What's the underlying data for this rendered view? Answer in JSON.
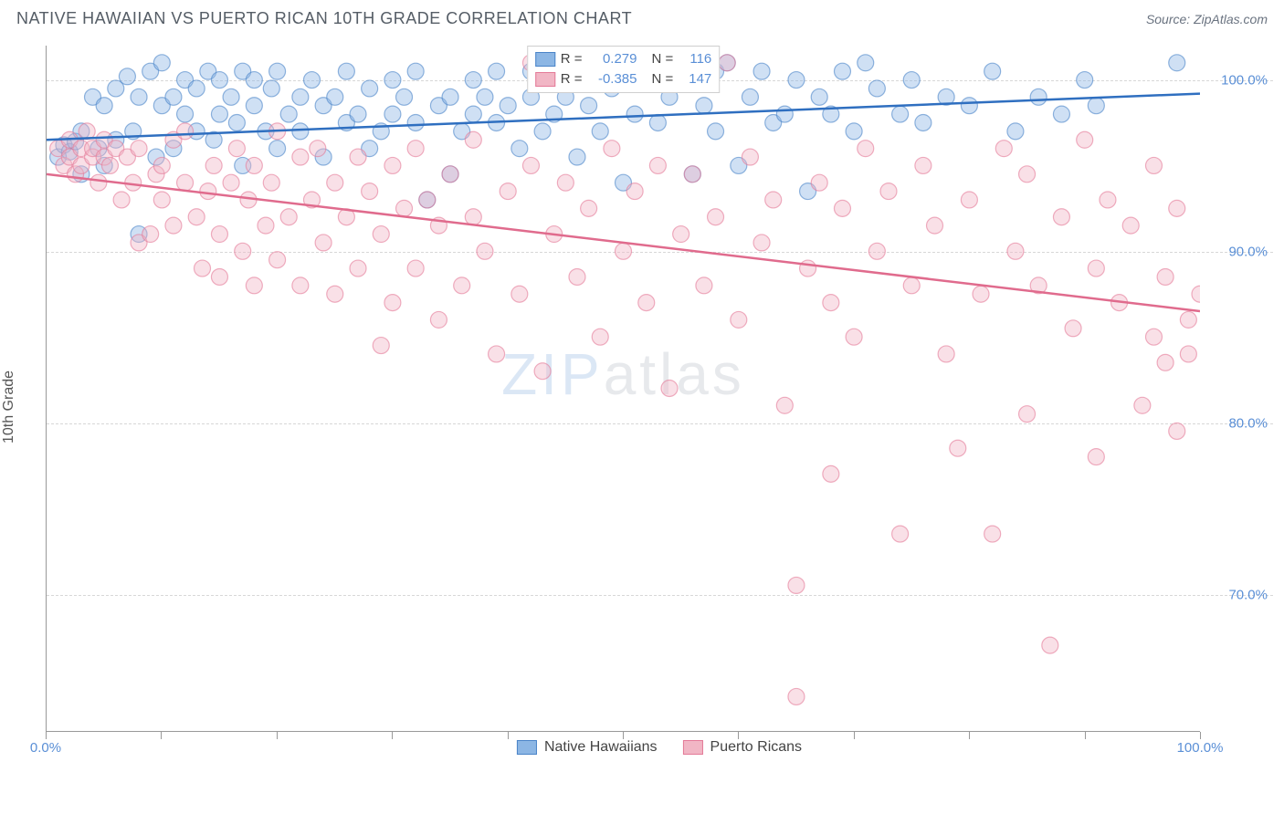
{
  "header": {
    "title": "NATIVE HAWAIIAN VS PUERTO RICAN 10TH GRADE CORRELATION CHART",
    "source": "Source: ZipAtlas.com"
  },
  "chart": {
    "type": "scatter",
    "y_axis_title": "10th Grade",
    "watermark_zip": "ZIP",
    "watermark_atlas": "atlas",
    "xlim": [
      0,
      100
    ],
    "ylim": [
      62,
      102
    ],
    "x_ticks": [
      0,
      10,
      20,
      30,
      40,
      50,
      60,
      70,
      80,
      90,
      100
    ],
    "x_tick_labels": {
      "0": "0.0%",
      "100": "100.0%"
    },
    "y_gridlines": [
      70,
      80,
      90,
      100
    ],
    "y_tick_labels": {
      "70": "70.0%",
      "80": "80.0%",
      "90": "90.0%",
      "100": "100.0%"
    },
    "marker_radius": 9,
    "marker_opacity": 0.42,
    "line_width": 2.5,
    "series": [
      {
        "key": "native_hawaiians",
        "label": "Native Hawaiians",
        "fill": "#8cb6e4",
        "stroke": "#4a84c8",
        "line_color": "#2f6fc0",
        "R": "0.279",
        "N": "116",
        "trend": {
          "x1": 0,
          "y1": 96.5,
          "x2": 100,
          "y2": 99.2
        },
        "points": [
          [
            1,
            95.5
          ],
          [
            1.5,
            96.2
          ],
          [
            2,
            95.8
          ],
          [
            2.5,
            96.4
          ],
          [
            3,
            97.0
          ],
          [
            3,
            94.5
          ],
          [
            4,
            99.0
          ],
          [
            4.5,
            96.0
          ],
          [
            5,
            98.5
          ],
          [
            5,
            95.0
          ],
          [
            6,
            99.5
          ],
          [
            6,
            96.5
          ],
          [
            7,
            100.2
          ],
          [
            7.5,
            97.0
          ],
          [
            8,
            91.0
          ],
          [
            8,
            99.0
          ],
          [
            9,
            100.5
          ],
          [
            9.5,
            95.5
          ],
          [
            10,
            98.5
          ],
          [
            10,
            101.0
          ],
          [
            11,
            96.0
          ],
          [
            11,
            99.0
          ],
          [
            12,
            98.0
          ],
          [
            12,
            100.0
          ],
          [
            13,
            97.0
          ],
          [
            13,
            99.5
          ],
          [
            14,
            100.5
          ],
          [
            14.5,
            96.5
          ],
          [
            15,
            98.0
          ],
          [
            15,
            100.0
          ],
          [
            16,
            99.0
          ],
          [
            16.5,
            97.5
          ],
          [
            17,
            100.5
          ],
          [
            17,
            95.0
          ],
          [
            18,
            98.5
          ],
          [
            18,
            100.0
          ],
          [
            19,
            97.0
          ],
          [
            19.5,
            99.5
          ],
          [
            20,
            100.5
          ],
          [
            20,
            96.0
          ],
          [
            21,
            98.0
          ],
          [
            22,
            99.0
          ],
          [
            22,
            97.0
          ],
          [
            23,
            100.0
          ],
          [
            24,
            98.5
          ],
          [
            24,
            95.5
          ],
          [
            25,
            99.0
          ],
          [
            26,
            97.5
          ],
          [
            26,
            100.5
          ],
          [
            27,
            98.0
          ],
          [
            28,
            99.5
          ],
          [
            28,
            96.0
          ],
          [
            29,
            97.0
          ],
          [
            30,
            100.0
          ],
          [
            30,
            98.0
          ],
          [
            31,
            99.0
          ],
          [
            32,
            100.5
          ],
          [
            32,
            97.5
          ],
          [
            33,
            93.0
          ],
          [
            34,
            98.5
          ],
          [
            35,
            94.5
          ],
          [
            35,
            99.0
          ],
          [
            36,
            97.0
          ],
          [
            37,
            98.0
          ],
          [
            37,
            100.0
          ],
          [
            38,
            99.0
          ],
          [
            39,
            97.5
          ],
          [
            39,
            100.5
          ],
          [
            40,
            98.5
          ],
          [
            41,
            96.0
          ],
          [
            42,
            99.0
          ],
          [
            42,
            100.5
          ],
          [
            43,
            97.0
          ],
          [
            44,
            98.0
          ],
          [
            44,
            100.0
          ],
          [
            45,
            99.0
          ],
          [
            46,
            95.5
          ],
          [
            47,
            98.5
          ],
          [
            48,
            100.0
          ],
          [
            48,
            97.0
          ],
          [
            49,
            99.5
          ],
          [
            50,
            94.0
          ],
          [
            51,
            98.0
          ],
          [
            52,
            100.5
          ],
          [
            53,
            97.5
          ],
          [
            54,
            99.0
          ],
          [
            55,
            100.0
          ],
          [
            56,
            94.5
          ],
          [
            57,
            98.5
          ],
          [
            58,
            100.5
          ],
          [
            58,
            97.0
          ],
          [
            59,
            101.0
          ],
          [
            60,
            95.0
          ],
          [
            61,
            99.0
          ],
          [
            62,
            100.5
          ],
          [
            63,
            97.5
          ],
          [
            64,
            98.0
          ],
          [
            65,
            100.0
          ],
          [
            66,
            93.5
          ],
          [
            67,
            99.0
          ],
          [
            68,
            98.0
          ],
          [
            69,
            100.5
          ],
          [
            70,
            97.0
          ],
          [
            71,
            101.0
          ],
          [
            72,
            99.5
          ],
          [
            74,
            98.0
          ],
          [
            75,
            100.0
          ],
          [
            76,
            97.5
          ],
          [
            78,
            99.0
          ],
          [
            80,
            98.5
          ],
          [
            82,
            100.5
          ],
          [
            84,
            97.0
          ],
          [
            86,
            99.0
          ],
          [
            88,
            98.0
          ],
          [
            90,
            100.0
          ],
          [
            91,
            98.5
          ],
          [
            98,
            101.0
          ]
        ]
      },
      {
        "key": "puerto_ricans",
        "label": "Puerto Ricans",
        "fill": "#f1b6c5",
        "stroke": "#e47a98",
        "line_color": "#e06b8d",
        "R": "-0.385",
        "N": "147",
        "trend": {
          "x1": 0,
          "y1": 94.5,
          "x2": 100,
          "y2": 86.5
        },
        "points": [
          [
            1,
            96.0
          ],
          [
            1.5,
            95.0
          ],
          [
            2,
            95.5
          ],
          [
            2,
            96.5
          ],
          [
            2.5,
            94.5
          ],
          [
            3,
            96.0
          ],
          [
            3,
            95.0
          ],
          [
            3.5,
            97.0
          ],
          [
            4,
            95.5
          ],
          [
            4,
            96.0
          ],
          [
            4.5,
            94.0
          ],
          [
            5,
            95.5
          ],
          [
            5,
            96.5
          ],
          [
            5.5,
            95.0
          ],
          [
            6,
            96.0
          ],
          [
            6.5,
            93.0
          ],
          [
            7,
            95.5
          ],
          [
            7.5,
            94.0
          ],
          [
            8,
            96.0
          ],
          [
            8,
            90.5
          ],
          [
            9,
            91.0
          ],
          [
            9.5,
            94.5
          ],
          [
            10,
            93.0
          ],
          [
            10,
            95.0
          ],
          [
            11,
            96.5
          ],
          [
            11,
            91.5
          ],
          [
            12,
            94.0
          ],
          [
            12,
            97.0
          ],
          [
            13,
            92.0
          ],
          [
            13.5,
            89.0
          ],
          [
            14,
            93.5
          ],
          [
            14.5,
            95.0
          ],
          [
            15,
            88.5
          ],
          [
            15,
            91.0
          ],
          [
            16,
            94.0
          ],
          [
            16.5,
            96.0
          ],
          [
            17,
            90.0
          ],
          [
            17.5,
            93.0
          ],
          [
            18,
            88.0
          ],
          [
            18,
            95.0
          ],
          [
            19,
            91.5
          ],
          [
            19.5,
            94.0
          ],
          [
            20,
            97.0
          ],
          [
            20,
            89.5
          ],
          [
            21,
            92.0
          ],
          [
            22,
            95.5
          ],
          [
            22,
            88.0
          ],
          [
            23,
            93.0
          ],
          [
            23.5,
            96.0
          ],
          [
            24,
            90.5
          ],
          [
            25,
            87.5
          ],
          [
            25,
            94.0
          ],
          [
            26,
            92.0
          ],
          [
            27,
            95.5
          ],
          [
            27,
            89.0
          ],
          [
            28,
            93.5
          ],
          [
            29,
            84.5
          ],
          [
            29,
            91.0
          ],
          [
            30,
            87.0
          ],
          [
            30,
            95.0
          ],
          [
            31,
            92.5
          ],
          [
            32,
            96.0
          ],
          [
            32,
            89.0
          ],
          [
            33,
            93.0
          ],
          [
            34,
            86.0
          ],
          [
            34,
            91.5
          ],
          [
            35,
            94.5
          ],
          [
            36,
            88.0
          ],
          [
            37,
            92.0
          ],
          [
            37,
            96.5
          ],
          [
            38,
            90.0
          ],
          [
            39,
            84.0
          ],
          [
            40,
            93.5
          ],
          [
            41,
            87.5
          ],
          [
            42,
            95.0
          ],
          [
            42,
            101.0
          ],
          [
            43,
            83.0
          ],
          [
            44,
            91.0
          ],
          [
            45,
            94.0
          ],
          [
            46,
            88.5
          ],
          [
            47,
            92.5
          ],
          [
            48,
            85.0
          ],
          [
            49,
            96.0
          ],
          [
            50,
            90.0
          ],
          [
            51,
            93.5
          ],
          [
            52,
            87.0
          ],
          [
            53,
            95.0
          ],
          [
            54,
            82.0
          ],
          [
            55,
            91.0
          ],
          [
            56,
            94.5
          ],
          [
            57,
            88.0
          ],
          [
            58,
            92.0
          ],
          [
            59,
            101.0
          ],
          [
            60,
            86.0
          ],
          [
            61,
            95.5
          ],
          [
            62,
            90.5
          ],
          [
            63,
            93.0
          ],
          [
            64,
            81.0
          ],
          [
            65,
            70.5
          ],
          [
            65,
            64.0
          ],
          [
            66,
            89.0
          ],
          [
            67,
            94.0
          ],
          [
            68,
            87.0
          ],
          [
            68,
            77.0
          ],
          [
            69,
            92.5
          ],
          [
            70,
            85.0
          ],
          [
            71,
            96.0
          ],
          [
            72,
            90.0
          ],
          [
            73,
            93.5
          ],
          [
            74,
            73.5
          ],
          [
            75,
            88.0
          ],
          [
            76,
            95.0
          ],
          [
            77,
            91.5
          ],
          [
            78,
            84.0
          ],
          [
            79,
            78.5
          ],
          [
            80,
            93.0
          ],
          [
            81,
            87.5
          ],
          [
            82,
            73.5
          ],
          [
            83,
            96.0
          ],
          [
            84,
            90.0
          ],
          [
            85,
            80.5
          ],
          [
            85,
            94.5
          ],
          [
            86,
            88.0
          ],
          [
            87,
            67.0
          ],
          [
            88,
            92.0
          ],
          [
            89,
            85.5
          ],
          [
            90,
            96.5
          ],
          [
            91,
            89.0
          ],
          [
            91,
            78.0
          ],
          [
            92,
            93.0
          ],
          [
            93,
            87.0
          ],
          [
            94,
            91.5
          ],
          [
            95,
            81.0
          ],
          [
            96,
            85.0
          ],
          [
            96,
            95.0
          ],
          [
            97,
            88.5
          ],
          [
            97,
            83.5
          ],
          [
            98,
            79.5
          ],
          [
            98,
            92.5
          ],
          [
            99,
            86.0
          ],
          [
            99,
            84.0
          ],
          [
            100,
            87.5
          ]
        ]
      }
    ]
  }
}
